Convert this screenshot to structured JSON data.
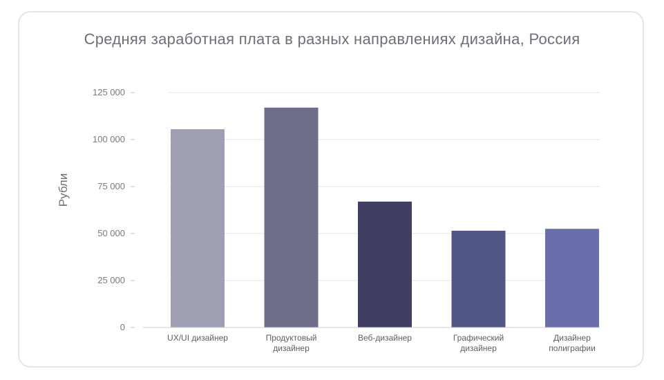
{
  "chart_data": {
    "type": "bar",
    "title": "Средняя заработная плата в разных направлениях дизайна, Россия",
    "xlabel": "",
    "ylabel": "Рубли",
    "ylim": [
      0,
      125000
    ],
    "yticks": [
      {
        "value": 0,
        "label": "0"
      },
      {
        "value": 25000,
        "label": "25 000"
      },
      {
        "value": 50000,
        "label": "50 000"
      },
      {
        "value": 75000,
        "label": "75 000"
      },
      {
        "value": 100000,
        "label": "100 000"
      },
      {
        "value": 125000,
        "label": "125 000"
      }
    ],
    "categories": [
      [
        "UX/UI дизайнер"
      ],
      [
        "Продуктовый",
        "дизайнер"
      ],
      [
        "Веб-дизайнер"
      ],
      [
        "Графический",
        "дизайнер"
      ],
      [
        "Дизайнер",
        "полиграфии"
      ]
    ],
    "values": [
      105500,
      117000,
      67000,
      51500,
      52500
    ],
    "colors": [
      "#9f9fb3",
      "#6e6e8a",
      "#403f63",
      "#515685",
      "#6a6eaa"
    ],
    "grid": true
  }
}
